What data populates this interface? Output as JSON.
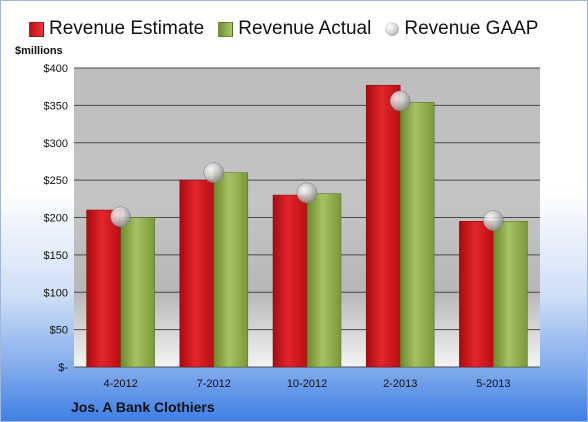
{
  "legend": {
    "estimate": "Revenue Estimate",
    "actual": "Revenue Actual",
    "gaap": "Revenue GAAP"
  },
  "unit_label": "$millions",
  "company": "Jos. A Bank Clothiers",
  "colors": {
    "estimate": "#d0141a",
    "actual": "#8db04c",
    "gaap": "#c8c8c8"
  },
  "chart_data": {
    "type": "bar",
    "categories": [
      "4-2012",
      "7-2012",
      "10-2012",
      "2-2013",
      "5-2013"
    ],
    "series": [
      {
        "name": "Revenue Estimate",
        "type": "bar",
        "values": [
          210,
          250,
          230,
          377,
          195
        ]
      },
      {
        "name": "Revenue Actual",
        "type": "bar",
        "values": [
          200,
          260,
          232,
          354,
          195
        ]
      },
      {
        "name": "Revenue GAAP",
        "type": "scatter",
        "values": [
          201,
          260,
          233,
          356,
          196
        ]
      }
    ],
    "ylabel": "$millions",
    "ylim": [
      0,
      400
    ],
    "yticks": [
      "$-",
      "$50",
      "$100",
      "$150",
      "$200",
      "$250",
      "$300",
      "$350",
      "$400"
    ],
    "grid": true,
    "legend": "top"
  }
}
